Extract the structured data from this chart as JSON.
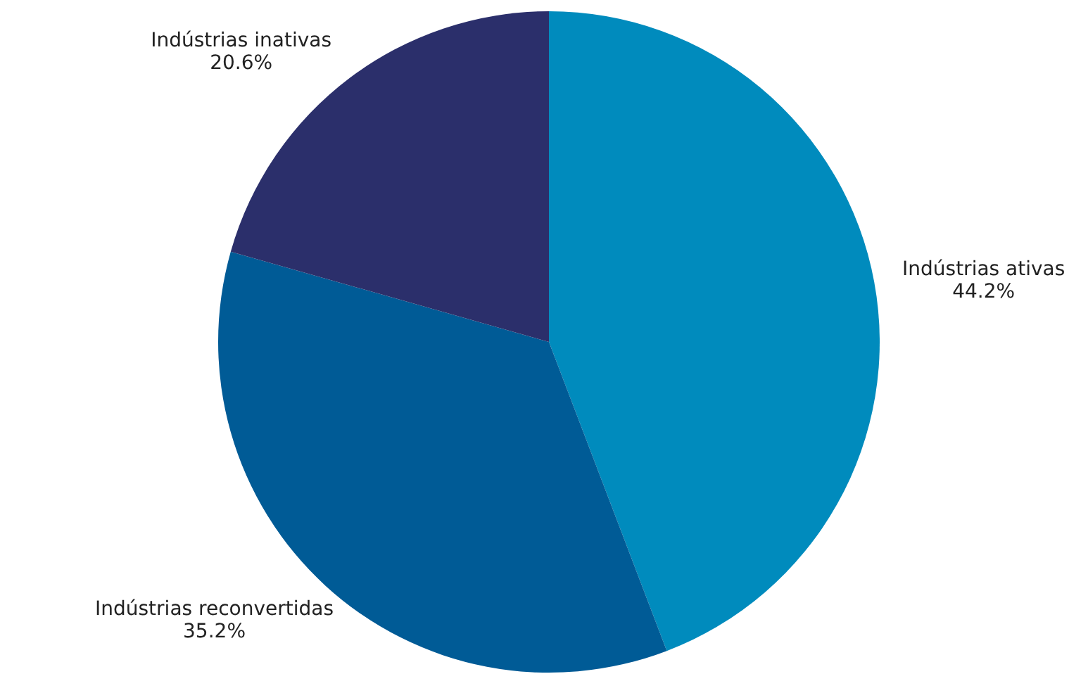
{
  "chart_data": {
    "type": "pie",
    "categories": [
      "Indústrias ativas",
      "Indústrias reconvertidas",
      "Indústrias inativas"
    ],
    "values": [
      44.2,
      35.2,
      20.6
    ],
    "colors": [
      "#008bbd",
      "#005b96",
      "#2b2f6b"
    ],
    "value_labels": [
      "44.2%",
      "35.2%",
      "20.6%"
    ]
  }
}
